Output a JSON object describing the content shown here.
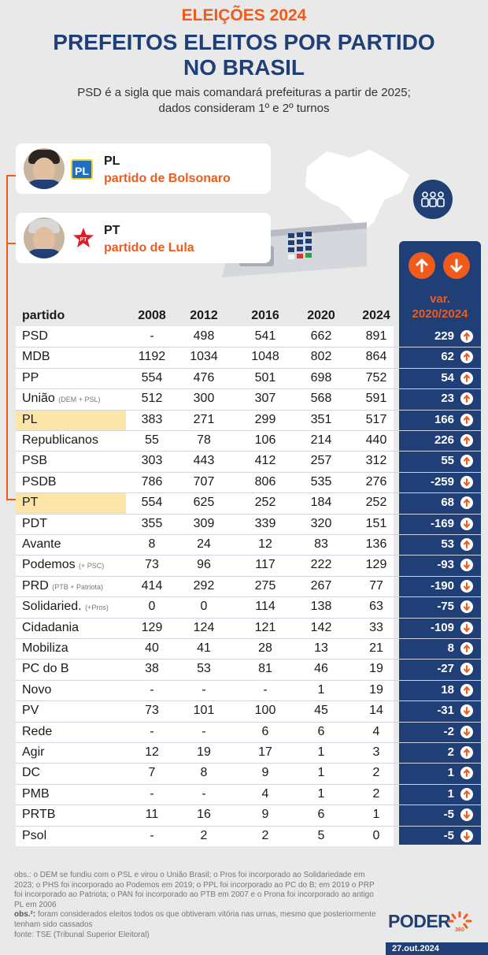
{
  "header": {
    "kicker": "ELEIÇÕES 2024",
    "title_line1": "PREFEITOS ELEITOS POR PARTIDO",
    "title_line2": "NO BRASIL",
    "subtitle_line1": "PSD é a sigla que mais comandará prefeituras a partir de 2025;",
    "subtitle_line2": "dados consideram 1º e 2º turnos"
  },
  "highlights": [
    {
      "name": "PL",
      "desc": "partido de Bolsonaro",
      "logo_text": "PL"
    },
    {
      "name": "PT",
      "desc": "partido de Lula",
      "logo_text": "PT"
    }
  ],
  "table_header": {
    "party": "partido",
    "years": [
      "2008",
      "2012",
      "2016",
      "2020",
      "2024"
    ],
    "var_line1": "var.",
    "var_line2": "2020/2024"
  },
  "colors": {
    "accent": "#f05a1a",
    "navy": "#1f3f76",
    "highlight": "#fbe5a8",
    "background": "#e9e9e9"
  },
  "chart_data": {
    "type": "table",
    "title": "PREFEITOS ELEITOS POR PARTIDO NO BRASIL",
    "columns": [
      "partido",
      "2008",
      "2012",
      "2016",
      "2020",
      "2024",
      "var. 2020/2024"
    ],
    "rows": [
      {
        "party": "PSD",
        "note": "",
        "values": [
          "-",
          "498",
          "541",
          "662",
          "891"
        ],
        "var": "229",
        "direction": "up",
        "highlight": false
      },
      {
        "party": "MDB",
        "note": "",
        "values": [
          "1192",
          "1034",
          "1048",
          "802",
          "864"
        ],
        "var": "62",
        "direction": "up",
        "highlight": false
      },
      {
        "party": "PP",
        "note": "",
        "values": [
          "554",
          "476",
          "501",
          "698",
          "752"
        ],
        "var": "54",
        "direction": "up",
        "highlight": false
      },
      {
        "party": "União",
        "note": "(DEM + PSL)",
        "values": [
          "512",
          "300",
          "307",
          "568",
          "591"
        ],
        "var": "23",
        "direction": "up",
        "highlight": false
      },
      {
        "party": "PL",
        "note": "",
        "values": [
          "383",
          "271",
          "299",
          "351",
          "517"
        ],
        "var": "166",
        "direction": "up",
        "highlight": true
      },
      {
        "party": "Republicanos",
        "note": "",
        "values": [
          "55",
          "78",
          "106",
          "214",
          "440"
        ],
        "var": "226",
        "direction": "up",
        "highlight": false
      },
      {
        "party": "PSB",
        "note": "",
        "values": [
          "303",
          "443",
          "412",
          "257",
          "312"
        ],
        "var": "55",
        "direction": "up",
        "highlight": false
      },
      {
        "party": "PSDB",
        "note": "",
        "values": [
          "786",
          "707",
          "806",
          "535",
          "276"
        ],
        "var": "-259",
        "direction": "down",
        "highlight": false
      },
      {
        "party": "PT",
        "note": "",
        "values": [
          "554",
          "625",
          "252",
          "184",
          "252"
        ],
        "var": "68",
        "direction": "up",
        "highlight": true
      },
      {
        "party": "PDT",
        "note": "",
        "values": [
          "355",
          "309",
          "339",
          "320",
          "151"
        ],
        "var": "-169",
        "direction": "down",
        "highlight": false
      },
      {
        "party": "Avante",
        "note": "",
        "values": [
          "8",
          "24",
          "12",
          "83",
          "136"
        ],
        "var": "53",
        "direction": "up",
        "highlight": false
      },
      {
        "party": "Podemos",
        "note": "(+ PSC)",
        "values": [
          "73",
          "96",
          "117",
          "222",
          "129"
        ],
        "var": "-93",
        "direction": "down",
        "highlight": false
      },
      {
        "party": "PRD",
        "note": "(PTB + Patriota)",
        "values": [
          "414",
          "292",
          "275",
          "267",
          "77"
        ],
        "var": "-190",
        "direction": "down",
        "highlight": false
      },
      {
        "party": "Solidaried.",
        "note": "(+Pros)",
        "values": [
          "0",
          "0",
          "114",
          "138",
          "63"
        ],
        "var": "-75",
        "direction": "down",
        "highlight": false
      },
      {
        "party": "Cidadania",
        "note": "",
        "values": [
          "129",
          "124",
          "121",
          "142",
          "33"
        ],
        "var": "-109",
        "direction": "down",
        "highlight": false
      },
      {
        "party": "Mobiliza",
        "note": "",
        "values": [
          "40",
          "41",
          "28",
          "13",
          "21"
        ],
        "var": "8",
        "direction": "up",
        "highlight": false
      },
      {
        "party": "PC do B",
        "note": "",
        "values": [
          "38",
          "53",
          "81",
          "46",
          "19"
        ],
        "var": "-27",
        "direction": "down",
        "highlight": false
      },
      {
        "party": "Novo",
        "note": "",
        "values": [
          "-",
          "-",
          "-",
          "1",
          "19"
        ],
        "var": "18",
        "direction": "up",
        "highlight": false
      },
      {
        "party": "PV",
        "note": "",
        "values": [
          "73",
          "101",
          "100",
          "45",
          "14"
        ],
        "var": "-31",
        "direction": "down",
        "highlight": false
      },
      {
        "party": "Rede",
        "note": "",
        "values": [
          "-",
          "-",
          "6",
          "6",
          "4"
        ],
        "var": "-2",
        "direction": "down",
        "highlight": false
      },
      {
        "party": "Agir",
        "note": "",
        "values": [
          "12",
          "19",
          "17",
          "1",
          "3"
        ],
        "var": "2",
        "direction": "up",
        "highlight": false
      },
      {
        "party": "DC",
        "note": "",
        "values": [
          "7",
          "8",
          "9",
          "1",
          "2"
        ],
        "var": "1",
        "direction": "up",
        "highlight": false
      },
      {
        "party": "PMB",
        "note": "",
        "values": [
          "-",
          "-",
          "4",
          "1",
          "2"
        ],
        "var": "1",
        "direction": "up",
        "highlight": false
      },
      {
        "party": "PRTB",
        "note": "",
        "values": [
          "11",
          "16",
          "9",
          "6",
          "1"
        ],
        "var": "-5",
        "direction": "down",
        "highlight": false
      },
      {
        "party": "Psol",
        "note": "",
        "values": [
          "-",
          "2",
          "2",
          "5",
          "0"
        ],
        "var": "-5",
        "direction": "down",
        "highlight": false
      }
    ]
  },
  "footer": {
    "obs1": "obs.: o DEM se fundiu com o PSL e virou o União Brasil; o Pros foi incorporado ao Solidariedade em 2023; o PHS foi incorporado ao Podemos em 2019; o PPL foi incorporado ao PC do B; em 2019 o PRP foi incorporado ao Patriota; o PAN foi incorporado ao PTB em 2007 e o Prona foi incorporado ao antigo PL em 2006",
    "obs2_label": "obs.²:",
    "obs2": " foram considerados eleitos todos os que obtiveram vitória nas urnas, mesmo que posteriormente tenham sido cassados",
    "source": "fonte: TSE (Tribunal Superior Eleitoral)",
    "brand": "PODER",
    "brand_sub": "360",
    "date": "27.out.2024"
  }
}
